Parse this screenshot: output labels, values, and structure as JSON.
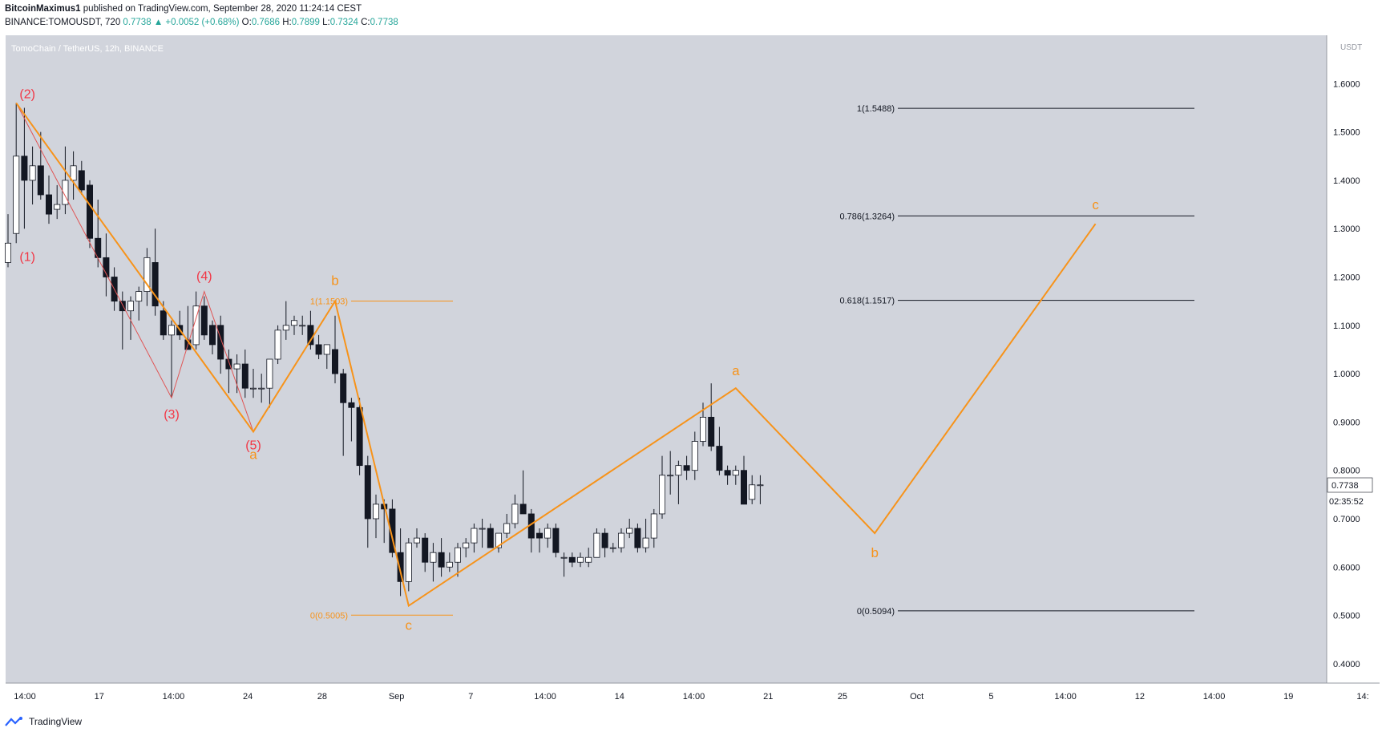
{
  "header": {
    "author": "BitcoinMaximus1",
    "published": " published on TradingView.com, September 28, 2020 11:24:14 CEST",
    "symbol": "BINANCE:TOMOUSDT, 720",
    "last": "0.7738",
    "change": "▲ +0.0052 (+0.68%)",
    "o_label": "O:",
    "o": "0.7686",
    "h_label": "H:",
    "h": "0.7899",
    "l_label": "L:",
    "l": "0.7324",
    "c_label": "C:",
    "c": "0.7738"
  },
  "footer": {
    "brand": "TradingView"
  },
  "colors": {
    "background": "#d1d4dc",
    "wave": "#f7931a",
    "red": "#f23645",
    "bull": "#ffffff",
    "bear": "#131722"
  },
  "chart_data": {
    "type": "candlestick",
    "title": "TomoChain / TetherUS, 12h, BINANCE",
    "y_unit": "USDT",
    "ylim": [
      0.36,
      1.7
    ],
    "y_ticks": [
      "1.6000",
      "1.5000",
      "1.4000",
      "1.3000",
      "1.2000",
      "1.1000",
      "1.0000",
      "0.9000",
      "0.8000",
      "0.7000",
      "0.6000",
      "0.5000",
      "0.4000"
    ],
    "x_ticks": [
      "14:00",
      "17",
      "14:00",
      "24",
      "28",
      "Sep",
      "7",
      "14:00",
      "14",
      "14:00",
      "21",
      "25",
      "Oct",
      "5",
      "14:00",
      "12",
      "14:00",
      "19",
      "14:"
    ],
    "last_price": "0.7738",
    "countdown": "02:35:52",
    "candles": [
      {
        "o": 1.23,
        "h": 1.33,
        "l": 1.22,
        "c": 1.27
      },
      {
        "o": 1.29,
        "h": 1.56,
        "l": 1.27,
        "c": 1.45
      },
      {
        "o": 1.45,
        "h": 1.55,
        "l": 1.3,
        "c": 1.4
      },
      {
        "o": 1.4,
        "h": 1.47,
        "l": 1.35,
        "c": 1.43
      },
      {
        "o": 1.43,
        "h": 1.5,
        "l": 1.36,
        "c": 1.37
      },
      {
        "o": 1.37,
        "h": 1.41,
        "l": 1.31,
        "c": 1.33
      },
      {
        "o": 1.34,
        "h": 1.39,
        "l": 1.32,
        "c": 1.35
      },
      {
        "o": 1.35,
        "h": 1.47,
        "l": 1.33,
        "c": 1.4
      },
      {
        "o": 1.4,
        "h": 1.46,
        "l": 1.36,
        "c": 1.43
      },
      {
        "o": 1.42,
        "h": 1.44,
        "l": 1.37,
        "c": 1.38
      },
      {
        "o": 1.39,
        "h": 1.4,
        "l": 1.26,
        "c": 1.28
      },
      {
        "o": 1.28,
        "h": 1.36,
        "l": 1.22,
        "c": 1.24
      },
      {
        "o": 1.24,
        "h": 1.29,
        "l": 1.16,
        "c": 1.2
      },
      {
        "o": 1.2,
        "h": 1.22,
        "l": 1.13,
        "c": 1.15
      },
      {
        "o": 1.15,
        "h": 1.17,
        "l": 1.05,
        "c": 1.13
      },
      {
        "o": 1.13,
        "h": 1.16,
        "l": 1.07,
        "c": 1.15
      },
      {
        "o": 1.15,
        "h": 1.18,
        "l": 1.11,
        "c": 1.17
      },
      {
        "o": 1.17,
        "h": 1.26,
        "l": 1.14,
        "c": 1.24
      },
      {
        "o": 1.23,
        "h": 1.3,
        "l": 1.12,
        "c": 1.14
      },
      {
        "o": 1.13,
        "h": 1.15,
        "l": 1.07,
        "c": 1.08
      },
      {
        "o": 1.08,
        "h": 1.11,
        "l": 0.95,
        "c": 1.1
      },
      {
        "o": 1.1,
        "h": 1.13,
        "l": 1.07,
        "c": 1.08
      },
      {
        "o": 1.07,
        "h": 1.14,
        "l": 1.05,
        "c": 1.05
      },
      {
        "o": 1.06,
        "h": 1.17,
        "l": 1.05,
        "c": 1.14
      },
      {
        "o": 1.14,
        "h": 1.16,
        "l": 1.07,
        "c": 1.08
      },
      {
        "o": 1.1,
        "h": 1.11,
        "l": 1.04,
        "c": 1.06
      },
      {
        "o": 1.1,
        "h": 1.12,
        "l": 1.0,
        "c": 1.03
      },
      {
        "o": 1.03,
        "h": 1.05,
        "l": 0.96,
        "c": 1.01
      },
      {
        "o": 1.01,
        "h": 1.04,
        "l": 0.96,
        "c": 1.02
      },
      {
        "o": 1.02,
        "h": 1.05,
        "l": 0.95,
        "c": 0.97
      },
      {
        "o": 0.97,
        "h": 1.01,
        "l": 0.95,
        "c": 0.97
      },
      {
        "o": 0.97,
        "h": 1.0,
        "l": 0.94,
        "c": 0.97
      },
      {
        "o": 0.97,
        "h": 1.02,
        "l": 0.93,
        "c": 1.03
      },
      {
        "o": 1.03,
        "h": 1.1,
        "l": 1.02,
        "c": 1.09
      },
      {
        "o": 1.09,
        "h": 1.15,
        "l": 1.07,
        "c": 1.1
      },
      {
        "o": 1.1,
        "h": 1.12,
        "l": 1.08,
        "c": 1.11
      },
      {
        "o": 1.1,
        "h": 1.12,
        "l": 1.08,
        "c": 1.1
      },
      {
        "o": 1.1,
        "h": 1.13,
        "l": 1.05,
        "c": 1.06
      },
      {
        "o": 1.06,
        "h": 1.08,
        "l": 1.03,
        "c": 1.04
      },
      {
        "o": 1.04,
        "h": 1.06,
        "l": 1.01,
        "c": 1.06
      },
      {
        "o": 1.05,
        "h": 1.12,
        "l": 0.98,
        "c": 1.0
      },
      {
        "o": 1.0,
        "h": 1.01,
        "l": 0.83,
        "c": 0.94
      },
      {
        "o": 0.94,
        "h": 0.95,
        "l": 0.86,
        "c": 0.93
      },
      {
        "o": 0.93,
        "h": 0.95,
        "l": 0.79,
        "c": 0.81
      },
      {
        "o": 0.81,
        "h": 0.83,
        "l": 0.64,
        "c": 0.7
      },
      {
        "o": 0.7,
        "h": 0.75,
        "l": 0.66,
        "c": 0.73
      },
      {
        "o": 0.73,
        "h": 0.74,
        "l": 0.65,
        "c": 0.72
      },
      {
        "o": 0.72,
        "h": 0.74,
        "l": 0.62,
        "c": 0.63
      },
      {
        "o": 0.63,
        "h": 0.68,
        "l": 0.54,
        "c": 0.57
      },
      {
        "o": 0.57,
        "h": 0.66,
        "l": 0.55,
        "c": 0.65
      },
      {
        "o": 0.65,
        "h": 0.68,
        "l": 0.64,
        "c": 0.66
      },
      {
        "o": 0.66,
        "h": 0.67,
        "l": 0.59,
        "c": 0.61
      },
      {
        "o": 0.61,
        "h": 0.65,
        "l": 0.57,
        "c": 0.63
      },
      {
        "o": 0.63,
        "h": 0.66,
        "l": 0.58,
        "c": 0.6
      },
      {
        "o": 0.6,
        "h": 0.63,
        "l": 0.59,
        "c": 0.61
      },
      {
        "o": 0.61,
        "h": 0.65,
        "l": 0.58,
        "c": 0.64
      },
      {
        "o": 0.64,
        "h": 0.66,
        "l": 0.62,
        "c": 0.65
      },
      {
        "o": 0.65,
        "h": 0.69,
        "l": 0.63,
        "c": 0.68
      },
      {
        "o": 0.68,
        "h": 0.7,
        "l": 0.64,
        "c": 0.68
      },
      {
        "o": 0.68,
        "h": 0.69,
        "l": 0.64,
        "c": 0.64
      },
      {
        "o": 0.64,
        "h": 0.67,
        "l": 0.63,
        "c": 0.67
      },
      {
        "o": 0.67,
        "h": 0.71,
        "l": 0.66,
        "c": 0.69
      },
      {
        "o": 0.69,
        "h": 0.75,
        "l": 0.68,
        "c": 0.73
      },
      {
        "o": 0.73,
        "h": 0.8,
        "l": 0.71,
        "c": 0.71
      },
      {
        "o": 0.71,
        "h": 0.72,
        "l": 0.63,
        "c": 0.66
      },
      {
        "o": 0.67,
        "h": 0.68,
        "l": 0.63,
        "c": 0.66
      },
      {
        "o": 0.66,
        "h": 0.69,
        "l": 0.64,
        "c": 0.68
      },
      {
        "o": 0.68,
        "h": 0.69,
        "l": 0.62,
        "c": 0.63
      },
      {
        "o": 0.62,
        "h": 0.63,
        "l": 0.58,
        "c": 0.62
      },
      {
        "o": 0.62,
        "h": 0.63,
        "l": 0.6,
        "c": 0.61
      },
      {
        "o": 0.61,
        "h": 0.63,
        "l": 0.6,
        "c": 0.62
      },
      {
        "o": 0.61,
        "h": 0.64,
        "l": 0.6,
        "c": 0.62
      },
      {
        "o": 0.62,
        "h": 0.68,
        "l": 0.62,
        "c": 0.67
      },
      {
        "o": 0.67,
        "h": 0.68,
        "l": 0.62,
        "c": 0.64
      },
      {
        "o": 0.64,
        "h": 0.65,
        "l": 0.63,
        "c": 0.64
      },
      {
        "o": 0.64,
        "h": 0.68,
        "l": 0.63,
        "c": 0.67
      },
      {
        "o": 0.67,
        "h": 0.7,
        "l": 0.66,
        "c": 0.68
      },
      {
        "o": 0.68,
        "h": 0.69,
        "l": 0.63,
        "c": 0.64
      },
      {
        "o": 0.64,
        "h": 0.7,
        "l": 0.63,
        "c": 0.66
      },
      {
        "o": 0.66,
        "h": 0.72,
        "l": 0.64,
        "c": 0.71
      },
      {
        "o": 0.71,
        "h": 0.83,
        "l": 0.7,
        "c": 0.79
      },
      {
        "o": 0.79,
        "h": 0.84,
        "l": 0.75,
        "c": 0.79
      },
      {
        "o": 0.79,
        "h": 0.82,
        "l": 0.73,
        "c": 0.81
      },
      {
        "o": 0.81,
        "h": 0.83,
        "l": 0.78,
        "c": 0.8
      },
      {
        "o": 0.8,
        "h": 0.88,
        "l": 0.78,
        "c": 0.86
      },
      {
        "o": 0.86,
        "h": 0.94,
        "l": 0.85,
        "c": 0.91
      },
      {
        "o": 0.91,
        "h": 0.98,
        "l": 0.84,
        "c": 0.85
      },
      {
        "o": 0.85,
        "h": 0.89,
        "l": 0.79,
        "c": 0.8
      },
      {
        "o": 0.8,
        "h": 0.81,
        "l": 0.77,
        "c": 0.79
      },
      {
        "o": 0.79,
        "h": 0.81,
        "l": 0.77,
        "c": 0.8
      },
      {
        "o": 0.8,
        "h": 0.83,
        "l": 0.73,
        "c": 0.73
      },
      {
        "o": 0.74,
        "h": 0.79,
        "l": 0.73,
        "c": 0.77
      },
      {
        "o": 0.77,
        "h": 0.79,
        "l": 0.73,
        "c": 0.77
      }
    ],
    "fib_black": [
      {
        "label": "1(1.5488)",
        "value": 1.5488
      },
      {
        "label": "0.786(1.3264)",
        "value": 1.3264
      },
      {
        "label": "0.618(1.1517)",
        "value": 1.1517
      },
      {
        "label": "0(0.5094)",
        "value": 0.5094
      }
    ],
    "fib_orange": [
      {
        "label": "1(1.1503)",
        "value": 1.1503
      },
      {
        "label": "0(0.5005)",
        "value": 0.5005
      }
    ],
    "waves_red": [
      {
        "label": "(1)",
        "bar": 1,
        "price": 1.27
      },
      {
        "label": "(2)",
        "bar": 1,
        "price": 1.56
      },
      {
        "label": "(3)",
        "bar": 20,
        "price": 0.95
      },
      {
        "label": "(4)",
        "bar": 24,
        "price": 1.17
      },
      {
        "label": "(5)",
        "bar": 30,
        "price": 0.88
      }
    ],
    "waves_orange": [
      {
        "label": "a",
        "bar": 30,
        "price": 0.88
      },
      {
        "label": "b",
        "bar": 40,
        "price": 1.15
      },
      {
        "label": "c",
        "bar": 49,
        "price": 0.52
      },
      {
        "label": "a",
        "bar": 89,
        "price": 0.97
      },
      {
        "label": "b",
        "bar": 106,
        "price": 0.67
      },
      {
        "label": "c",
        "bar": 133,
        "price": 1.31
      }
    ]
  }
}
